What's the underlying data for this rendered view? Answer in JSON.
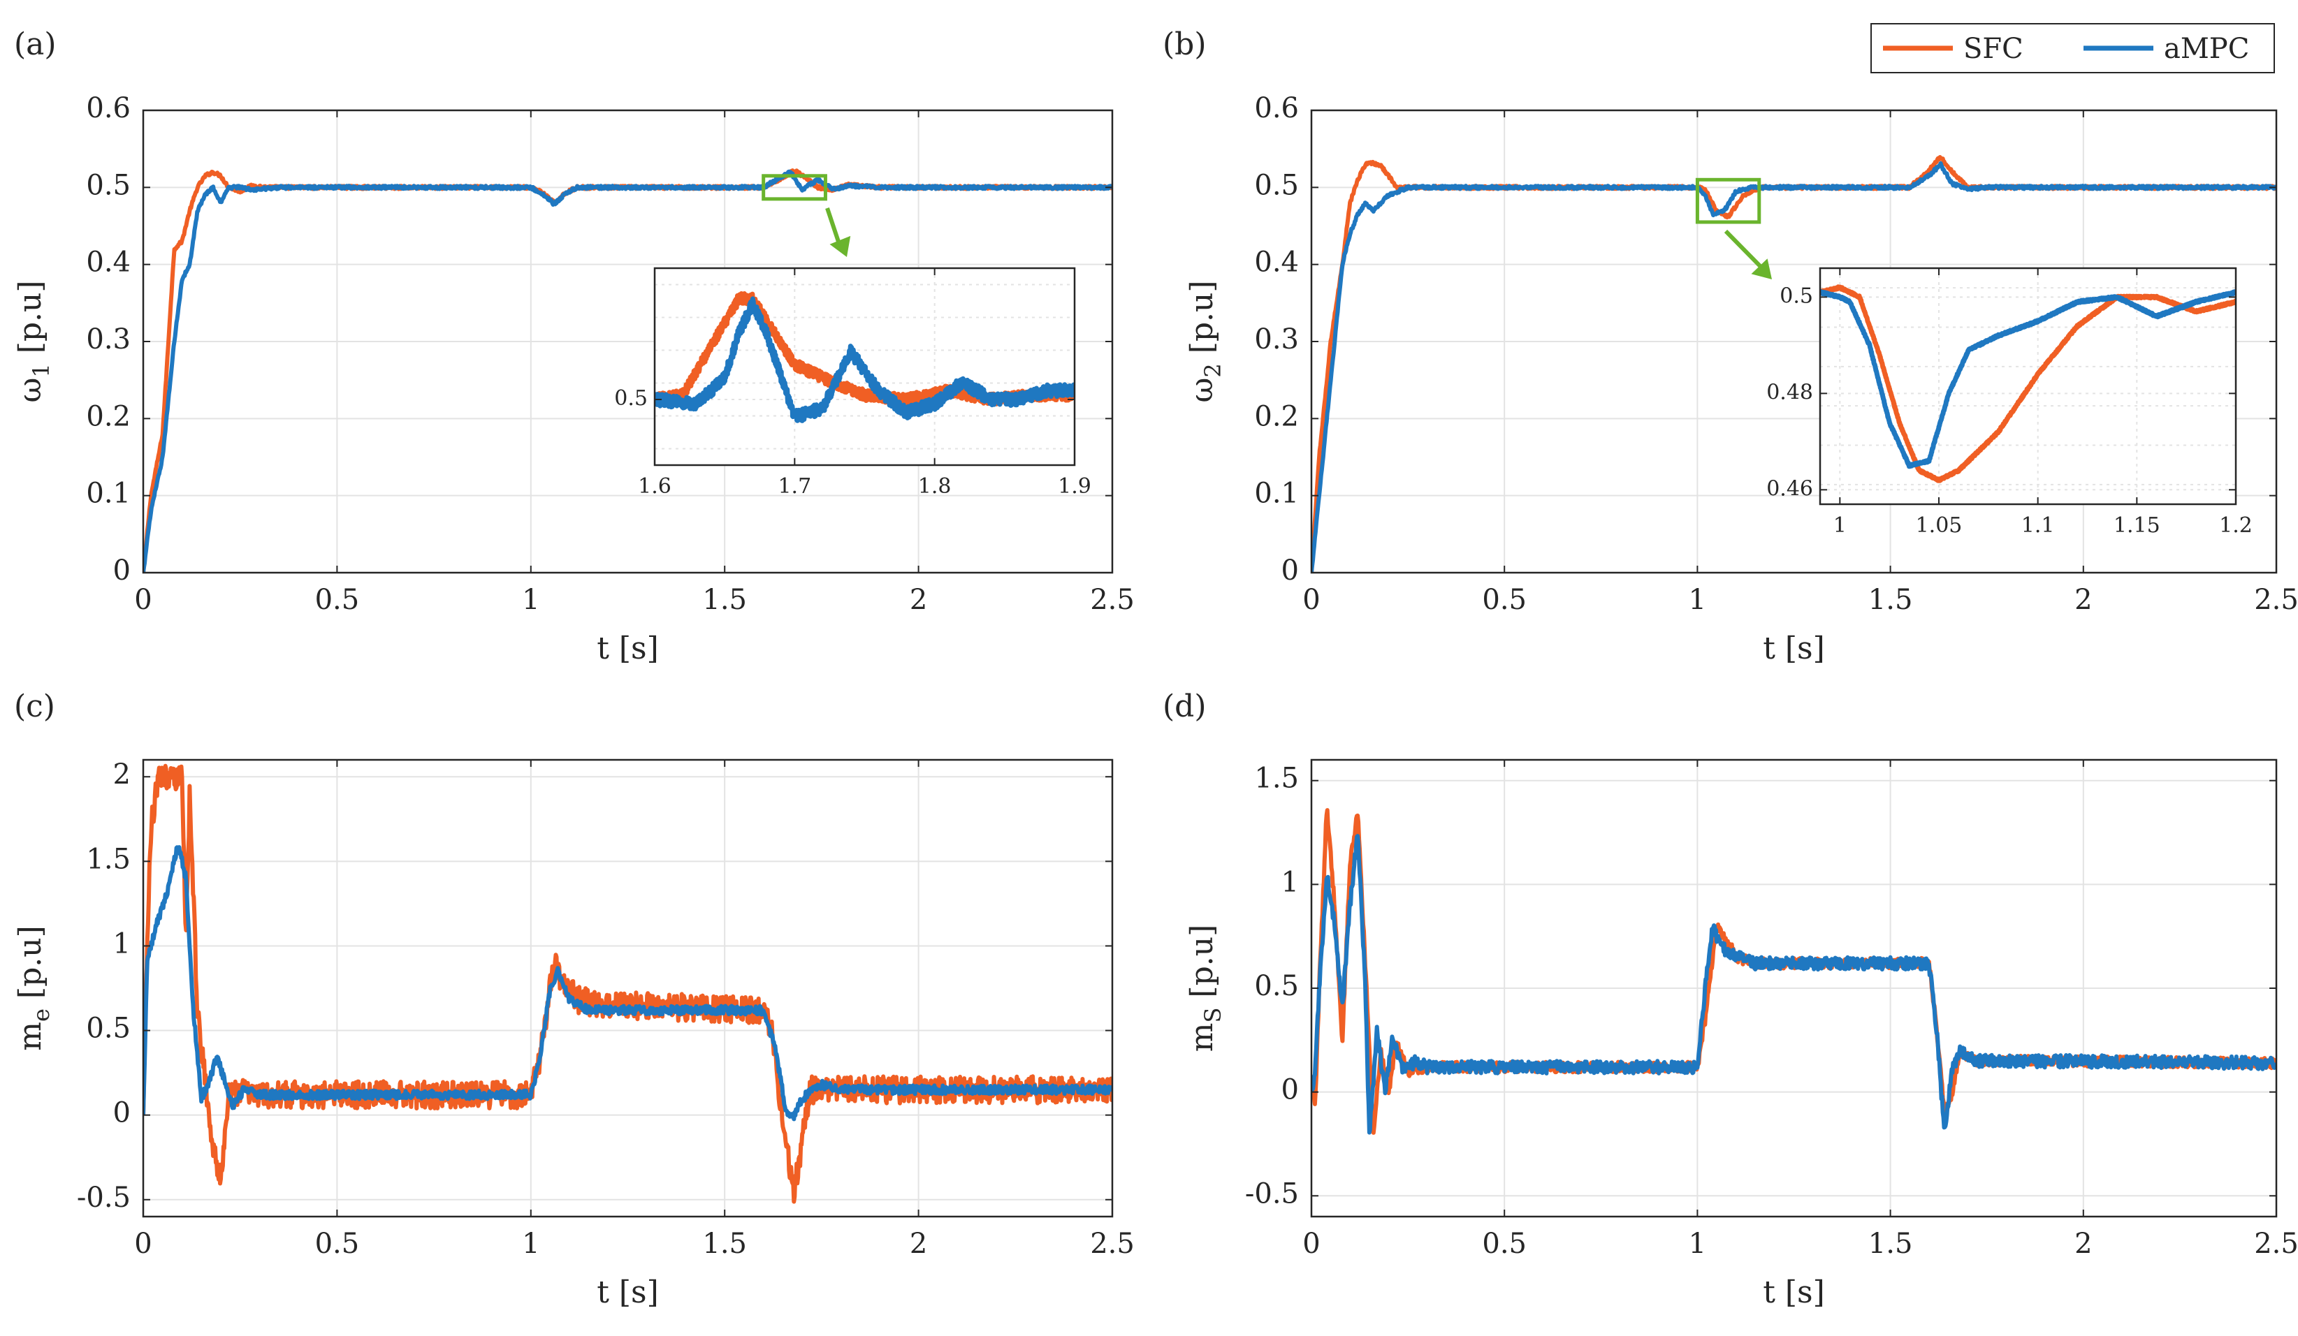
{
  "colors": {
    "sfc": "#f05f24",
    "ampc": "#1f78c1",
    "grid": "#e3e3e3",
    "zoom_box": "#6ab42d",
    "axis": "#262626"
  },
  "legend": {
    "sfc_label": "SFC",
    "ampc_label": "aMPC"
  },
  "chart_data": [
    {
      "id": "a",
      "panel_label": "(a)",
      "type": "line",
      "xlabel": "t [s]",
      "ylabel_main": "ω",
      "ylabel_sub": "1",
      "ylabel_unit": "[p.u]",
      "xlim": [
        0,
        2.5
      ],
      "ylim": [
        0,
        0.6
      ],
      "xticks": [
        0,
        0.5,
        1,
        1.5,
        2,
        2.5
      ],
      "xtick_labels": [
        "0",
        "0.5",
        "1",
        "1.5",
        "2",
        "2.5"
      ],
      "yticks": [
        0,
        0.1,
        0.2,
        0.3,
        0.4,
        0.5,
        0.6
      ],
      "ytick_labels": [
        "0",
        "0.1",
        "0.2",
        "0.3",
        "0.4",
        "0.5",
        "0.6"
      ],
      "series": [
        {
          "name": "SFC",
          "noise": 0.002,
          "x": [
            0,
            0.02,
            0.05,
            0.08,
            0.1,
            0.12,
            0.14,
            0.16,
            0.18,
            0.2,
            0.22,
            0.25,
            0.28,
            0.32,
            0.4,
            0.6,
            1.0,
            1.03,
            1.06,
            1.09,
            1.12,
            1.2,
            1.6,
            1.64,
            1.68,
            1.71,
            1.74,
            1.78,
            1.82,
            1.9,
            2.5
          ],
          "y": [
            0,
            0.1,
            0.18,
            0.42,
            0.43,
            0.47,
            0.5,
            0.515,
            0.52,
            0.515,
            0.5,
            0.495,
            0.502,
            0.5,
            0.5,
            0.5,
            0.5,
            0.493,
            0.48,
            0.493,
            0.5,
            0.5,
            0.5,
            0.51,
            0.522,
            0.512,
            0.5,
            0.497,
            0.503,
            0.5,
            0.5
          ]
        },
        {
          "name": "aMPC",
          "noise": 0.002,
          "x": [
            0,
            0.02,
            0.05,
            0.08,
            0.1,
            0.12,
            0.14,
            0.16,
            0.18,
            0.2,
            0.22,
            0.25,
            0.28,
            0.35,
            0.6,
            1.0,
            1.03,
            1.06,
            1.09,
            1.12,
            1.2,
            1.6,
            1.65,
            1.67,
            1.7,
            1.74,
            1.78,
            1.82,
            1.9,
            2.5
          ],
          "y": [
            0,
            0.08,
            0.15,
            0.3,
            0.38,
            0.4,
            0.47,
            0.49,
            0.5,
            0.48,
            0.5,
            0.5,
            0.497,
            0.5,
            0.5,
            0.5,
            0.492,
            0.478,
            0.492,
            0.5,
            0.5,
            0.5,
            0.515,
            0.52,
            0.497,
            0.51,
            0.498,
            0.502,
            0.5,
            0.5
          ]
        }
      ],
      "zoom_box": {
        "x": [
          1.6,
          1.76
        ],
        "y": [
          0.485,
          0.515
        ]
      },
      "inset": {
        "xlim": [
          1.6,
          1.9
        ],
        "ylim": [
          0.485,
          0.53
        ],
        "xticks": [
          1.6,
          1.7,
          1.8,
          1.9
        ],
        "xtick_labels": [
          "1.6",
          "1.7",
          "1.8",
          "1.9"
        ],
        "yticks": [
          0.5
        ],
        "ytick_labels": [
          "0.5"
        ],
        "series": [
          {
            "name": "SFC",
            "noise": 0.0012,
            "x": [
              1.6,
              1.62,
              1.64,
              1.66,
              1.67,
              1.68,
              1.7,
              1.72,
              1.75,
              1.78,
              1.81,
              1.84,
              1.87,
              1.9
            ],
            "y": [
              0.5,
              0.501,
              0.512,
              0.523,
              0.523,
              0.518,
              0.508,
              0.505,
              0.501,
              0.5,
              0.502,
              0.5,
              0.501,
              0.501
            ]
          },
          {
            "name": "aMPC",
            "noise": 0.0014,
            "x": [
              1.6,
              1.63,
              1.65,
              1.66,
              1.67,
              1.68,
              1.7,
              1.72,
              1.74,
              1.76,
              1.78,
              1.8,
              1.82,
              1.84,
              1.86,
              1.88,
              1.9
            ],
            "y": [
              0.5,
              0.499,
              0.505,
              0.515,
              0.522,
              0.515,
              0.496,
              0.498,
              0.511,
              0.502,
              0.497,
              0.499,
              0.504,
              0.5,
              0.5,
              0.502,
              0.502
            ]
          }
        ]
      }
    },
    {
      "id": "b",
      "panel_label": "(b)",
      "type": "line",
      "xlabel": "t [s]",
      "ylabel_main": "ω",
      "ylabel_sub": "2",
      "ylabel_unit": "[p.u]",
      "xlim": [
        0,
        2.5
      ],
      "ylim": [
        0,
        0.6
      ],
      "xticks": [
        0,
        0.5,
        1,
        1.5,
        2,
        2.5
      ],
      "xtick_labels": [
        "0",
        "0.5",
        "1",
        "1.5",
        "2",
        "2.5"
      ],
      "yticks": [
        0,
        0.1,
        0.2,
        0.3,
        0.4,
        0.5,
        0.6
      ],
      "ytick_labels": [
        "0",
        "0.1",
        "0.2",
        "0.3",
        "0.4",
        "0.5",
        "0.6"
      ],
      "series": [
        {
          "name": "SFC",
          "noise": 0.002,
          "x": [
            0,
            0.02,
            0.05,
            0.08,
            0.1,
            0.12,
            0.14,
            0.16,
            0.18,
            0.2,
            0.22,
            0.25,
            0.3,
            0.6,
            1.0,
            1.02,
            1.05,
            1.08,
            1.12,
            1.16,
            1.2,
            1.55,
            1.6,
            1.63,
            1.66,
            1.7,
            1.75,
            2.5
          ],
          "y": [
            0,
            0.15,
            0.3,
            0.4,
            0.48,
            0.51,
            0.53,
            0.532,
            0.528,
            0.515,
            0.5,
            0.5,
            0.5,
            0.5,
            0.5,
            0.497,
            0.47,
            0.462,
            0.49,
            0.5,
            0.5,
            0.5,
            0.522,
            0.54,
            0.52,
            0.5,
            0.5,
            0.5
          ]
        },
        {
          "name": "aMPC",
          "noise": 0.002,
          "x": [
            0,
            0.02,
            0.05,
            0.08,
            0.1,
            0.12,
            0.14,
            0.16,
            0.2,
            0.25,
            0.3,
            0.6,
            1.0,
            1.02,
            1.04,
            1.07,
            1.1,
            1.14,
            1.2,
            1.55,
            1.6,
            1.63,
            1.66,
            1.7,
            1.75,
            2.5
          ],
          "y": [
            0,
            0.1,
            0.25,
            0.4,
            0.44,
            0.465,
            0.48,
            0.47,
            0.49,
            0.5,
            0.5,
            0.5,
            0.5,
            0.49,
            0.465,
            0.47,
            0.495,
            0.5,
            0.5,
            0.5,
            0.515,
            0.53,
            0.505,
            0.498,
            0.5,
            0.5
          ]
        }
      ],
      "zoom_box": {
        "x": [
          1.0,
          1.16
        ],
        "y": [
          0.455,
          0.51
        ]
      },
      "inset": {
        "xlim": [
          0.99,
          1.2
        ],
        "ylim": [
          0.457,
          0.506
        ],
        "xticks": [
          1.0,
          1.05,
          1.1,
          1.15,
          1.2
        ],
        "xtick_labels": [
          "1",
          "1.05",
          "1.1",
          "1.15",
          "1.2"
        ],
        "yticks": [
          0.46,
          0.48,
          0.5
        ],
        "ytick_labels": [
          "0.46",
          "0.48",
          "0.5"
        ],
        "series": [
          {
            "name": "SFC",
            "noise": 0.0002,
            "x": [
              0.99,
              1.0,
              1.01,
              1.02,
              1.03,
              1.04,
              1.05,
              1.06,
              1.08,
              1.1,
              1.12,
              1.14,
              1.16,
              1.18,
              1.2
            ],
            "y": [
              0.501,
              0.502,
              0.5,
              0.488,
              0.474,
              0.464,
              0.462,
              0.464,
              0.472,
              0.484,
              0.494,
              0.5,
              0.5,
              0.497,
              0.499
            ]
          },
          {
            "name": "aMPC",
            "noise": 0.0002,
            "x": [
              0.99,
              1.0,
              1.005,
              1.015,
              1.025,
              1.035,
              1.045,
              1.055,
              1.065,
              1.08,
              1.1,
              1.12,
              1.14,
              1.16,
              1.18,
              1.2
            ],
            "y": [
              0.501,
              0.5,
              0.499,
              0.49,
              0.474,
              0.465,
              0.466,
              0.48,
              0.489,
              0.492,
              0.495,
              0.499,
              0.5,
              0.496,
              0.499,
              0.501
            ]
          }
        ]
      }
    },
    {
      "id": "c",
      "panel_label": "(c)",
      "type": "line",
      "xlabel": "t [s]",
      "ylabel_main": "m",
      "ylabel_sub": "e",
      "ylabel_unit": "[p.u]",
      "xlim": [
        0,
        2.5
      ],
      "ylim": [
        -0.6,
        2.1
      ],
      "xticks": [
        0,
        0.5,
        1,
        1.5,
        2,
        2.5
      ],
      "xtick_labels": [
        "0",
        "0.5",
        "1",
        "1.5",
        "2",
        "2.5"
      ],
      "yticks": [
        -0.5,
        0,
        0.5,
        1,
        1.5,
        2
      ],
      "ytick_labels": [
        "-0.5",
        "0",
        "0.5",
        "1",
        "1.5",
        "2"
      ],
      "series": [
        {
          "name": "SFC",
          "noise": 0.08,
          "x": [
            0,
            0.01,
            0.02,
            0.04,
            0.1,
            0.11,
            0.12,
            0.14,
            0.16,
            0.18,
            0.2,
            0.22,
            0.25,
            0.3,
            1.0,
            1.02,
            1.06,
            1.08,
            1.12,
            1.2,
            1.6,
            1.62,
            1.66,
            1.68,
            1.72,
            1.8,
            2.5
          ],
          "y": [
            0,
            1.0,
            1.7,
            2.0,
            2.0,
            1.0,
            1.9,
            0.6,
            0.2,
            -0.2,
            -0.4,
            0.1,
            0.15,
            0.12,
            0.12,
            0.3,
            0.9,
            0.8,
            0.68,
            0.65,
            0.62,
            0.5,
            -0.2,
            -0.45,
            0.15,
            0.15,
            0.15
          ]
        },
        {
          "name": "aMPC",
          "noise": 0.025,
          "x": [
            0,
            0.01,
            0.03,
            0.06,
            0.09,
            0.11,
            0.13,
            0.15,
            0.17,
            0.19,
            0.21,
            0.23,
            0.26,
            0.3,
            1.0,
            1.02,
            1.05,
            1.07,
            1.1,
            1.15,
            1.6,
            1.63,
            1.66,
            1.68,
            1.7,
            1.75,
            1.8,
            2.5
          ],
          "y": [
            0,
            0.9,
            1.1,
            1.3,
            1.6,
            1.4,
            0.6,
            0.1,
            0.2,
            0.35,
            0.2,
            0.05,
            0.15,
            0.12,
            0.12,
            0.3,
            0.75,
            0.85,
            0.68,
            0.62,
            0.62,
            0.4,
            0.0,
            0.0,
            0.1,
            0.18,
            0.15,
            0.15
          ]
        }
      ]
    },
    {
      "id": "d",
      "panel_label": "(d)",
      "type": "line",
      "xlabel": "t [s]",
      "ylabel_main": "m",
      "ylabel_sub": "S",
      "ylabel_unit": "[p.u]",
      "xlim": [
        0,
        2.5
      ],
      "ylim": [
        -0.6,
        1.6
      ],
      "xticks": [
        0,
        0.5,
        1,
        1.5,
        2,
        2.5
      ],
      "xtick_labels": [
        "0",
        "0.5",
        "1",
        "1.5",
        "2",
        "2.5"
      ],
      "yticks": [
        -0.5,
        0,
        0.5,
        1,
        1.5
      ],
      "ytick_labels": [
        "-0.5",
        "0",
        "0.5",
        "1",
        "1.5"
      ],
      "series": [
        {
          "name": "SFC",
          "noise": 0.025,
          "x": [
            0,
            0.01,
            0.02,
            0.04,
            0.06,
            0.08,
            0.1,
            0.12,
            0.14,
            0.16,
            0.18,
            0.2,
            0.22,
            0.25,
            0.3,
            1.0,
            1.02,
            1.05,
            1.07,
            1.1,
            1.15,
            1.6,
            1.62,
            1.64,
            1.66,
            1.68,
            1.72,
            1.8,
            2.5
          ],
          "y": [
            0,
            -0.05,
            0.5,
            1.38,
            0.9,
            0.25,
            1.1,
            1.35,
            0.6,
            -0.2,
            0.2,
            0.0,
            0.25,
            0.1,
            0.12,
            0.12,
            0.35,
            0.8,
            0.75,
            0.65,
            0.62,
            0.62,
            0.3,
            -0.1,
            0.0,
            0.2,
            0.15,
            0.15,
            0.14
          ]
        },
        {
          "name": "aMPC",
          "noise": 0.03,
          "x": [
            0,
            0.01,
            0.02,
            0.04,
            0.06,
            0.08,
            0.1,
            0.12,
            0.14,
            0.15,
            0.17,
            0.19,
            0.21,
            0.24,
            0.27,
            0.3,
            1.0,
            1.02,
            1.04,
            1.06,
            1.1,
            1.15,
            1.6,
            1.62,
            1.64,
            1.66,
            1.68,
            1.72,
            1.8,
            2.5
          ],
          "y": [
            0,
            0.1,
            0.5,
            1.05,
            0.8,
            0.4,
            0.9,
            1.25,
            0.5,
            -0.2,
            0.3,
            0.0,
            0.25,
            0.1,
            0.15,
            0.12,
            0.12,
            0.5,
            0.8,
            0.7,
            0.65,
            0.62,
            0.62,
            0.3,
            -0.2,
            0.1,
            0.2,
            0.15,
            0.15,
            0.14
          ]
        }
      ]
    }
  ]
}
